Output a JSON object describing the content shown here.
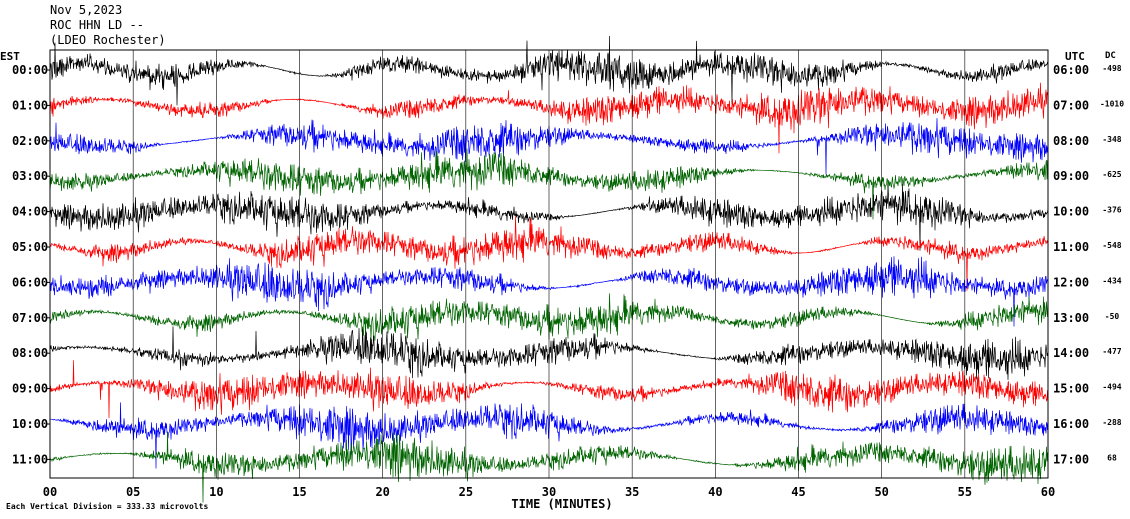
{
  "header": {
    "date": "Nov 5,2023",
    "station": "ROC HHN LD --",
    "location": "(LDEO Rochester)"
  },
  "chart_data": {
    "type": "line",
    "title": "Nov 5,2023",
    "left_label": "EST",
    "right_label": "UTC",
    "dc_label": "DC",
    "xlabel": "TIME (MINUTES)",
    "xlim": [
      0,
      60
    ],
    "x_ticks": [
      "00",
      "05",
      "10",
      "15",
      "20",
      "25",
      "30",
      "35",
      "40",
      "45",
      "50",
      "55",
      "60"
    ],
    "footer": "Each Vertical Division =  333.33 microvolts",
    "trace_colors": [
      "#000000",
      "#ff0000",
      "#0000ff",
      "#006400"
    ],
    "rows": [
      {
        "est": "00:00",
        "utc": "06:00",
        "dc": "-498"
      },
      {
        "est": "01:00",
        "utc": "07:00",
        "dc": "-1010"
      },
      {
        "est": "02:00",
        "utc": "08:00",
        "dc": "-348"
      },
      {
        "est": "03:00",
        "utc": "09:00",
        "dc": "-625"
      },
      {
        "est": "04:00",
        "utc": "10:00",
        "dc": "-376"
      },
      {
        "est": "05:00",
        "utc": "11:00",
        "dc": "-548"
      },
      {
        "est": "06:00",
        "utc": "12:00",
        "dc": "-434"
      },
      {
        "est": "07:00",
        "utc": "13:00",
        "dc": "-50"
      },
      {
        "est": "08:00",
        "utc": "14:00",
        "dc": "-477"
      },
      {
        "est": "09:00",
        "utc": "15:00",
        "dc": "-494"
      },
      {
        "est": "10:00",
        "utc": "16:00",
        "dc": "-288"
      },
      {
        "est": "11:00",
        "utc": "17:00",
        "dc": "68"
      }
    ]
  }
}
